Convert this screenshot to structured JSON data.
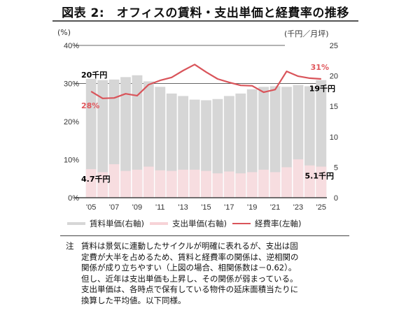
{
  "title": "図表 2:　オフィスの賃料・支出単価と経費率の推移",
  "colors": {
    "rent": "#d6d6d6",
    "expense": "#f7dde0",
    "ratio": "#d9545a",
    "ratio_label": "#e0575c",
    "reference_line": "#666666"
  },
  "chart_data": {
    "type": "bar",
    "title": "オフィスの賃料・支出単価と経費率の推移",
    "categories": [
      "'05",
      "'06",
      "'07",
      "'08",
      "'09",
      "'10",
      "'11",
      "'12",
      "'13",
      "'14",
      "'15",
      "'16",
      "'17",
      "'18",
      "'19",
      "'20",
      "'21",
      "'22",
      "'23",
      "'24",
      "'25"
    ],
    "x_tick_labels": [
      "'05",
      "'07",
      "'09",
      "'11",
      "'13",
      "'15",
      "'17",
      "'19",
      "'21",
      "'23",
      "'25"
    ],
    "left_axis": {
      "label": "(%)",
      "ticks": [
        "0%",
        "10%",
        "20%",
        "30%",
        "40%"
      ],
      "range": [
        0,
        40
      ]
    },
    "right_axis": {
      "label": "(千円/月坪)",
      "ticks": [
        "0",
        "5",
        "10",
        "15",
        "20",
        "25"
      ],
      "range": [
        0,
        25
      ]
    },
    "reference_lines_left_pct": [
      30,
      40
    ],
    "series": [
      {
        "name": "賃料単価(右軸)",
        "type": "bar",
        "axis": "right",
        "values": [
          19.5,
          19.3,
          19.4,
          19.8,
          20.1,
          19.1,
          18.2,
          17.1,
          16.7,
          16.1,
          16.0,
          16.2,
          16.7,
          17.1,
          17.8,
          18.2,
          18.3,
          18.2,
          18.5,
          18.3,
          19.3
        ]
      },
      {
        "name": "支出単価(右軸)",
        "type": "bar",
        "axis": "right",
        "values": [
          4.7,
          4.2,
          5.5,
          4.4,
          4.6,
          5.1,
          4.5,
          4.4,
          4.6,
          4.6,
          4.4,
          4.0,
          4.3,
          4.0,
          4.2,
          4.6,
          4.2,
          5.0,
          6.3,
          5.3,
          5.1
        ]
      },
      {
        "name": "経費率(左軸)",
        "type": "line",
        "axis": "left",
        "values": [
          27.9,
          26.1,
          26.2,
          27.3,
          26.8,
          29.7,
          30.8,
          31.6,
          33.4,
          35.0,
          33.0,
          31.2,
          30.3,
          29.5,
          29.4,
          27.7,
          28.4,
          33.2,
          31.9,
          31.4,
          31.2
        ]
      }
    ],
    "annotations": [
      {
        "text": "20千円",
        "series": "賃料単価(右軸)",
        "at": "'05"
      },
      {
        "text": "28%",
        "series": "経費率(左軸)",
        "at": "'05"
      },
      {
        "text": "4.7千円",
        "series": "支出単価(右軸)",
        "at": "'05"
      },
      {
        "text": "31%",
        "series": "経費率(左軸)",
        "at": "'25"
      },
      {
        "text": "19千円",
        "series": "賃料単価(右軸)",
        "at": "'25"
      },
      {
        "text": "5.1千円",
        "series": "支出単価(右軸)",
        "at": "'25"
      }
    ],
    "legend": [
      "賃料単価(右軸)",
      "支出単価(右軸)",
      "経費率(左軸)"
    ],
    "legend_position": "bottom",
    "grid": false
  },
  "units": {
    "left": "(%)",
    "right": "(千円／月坪)"
  },
  "note": {
    "label": "注",
    "lines": [
      "賃料は景気に連動したサイクルが明確に表れるが、支出は固",
      "定費が大半を占めるため、賃料と経費率の関係は、逆相関の",
      "関係が成り立ちやすい（上図の場合、相関係数は－0.62）。",
      "但し、近年は支出単価も上昇し、その関係が弱まっている。",
      "支出単価は、各時点で保有している物件の延床面積当たりに",
      "換算した平均値。以下同様。"
    ]
  }
}
